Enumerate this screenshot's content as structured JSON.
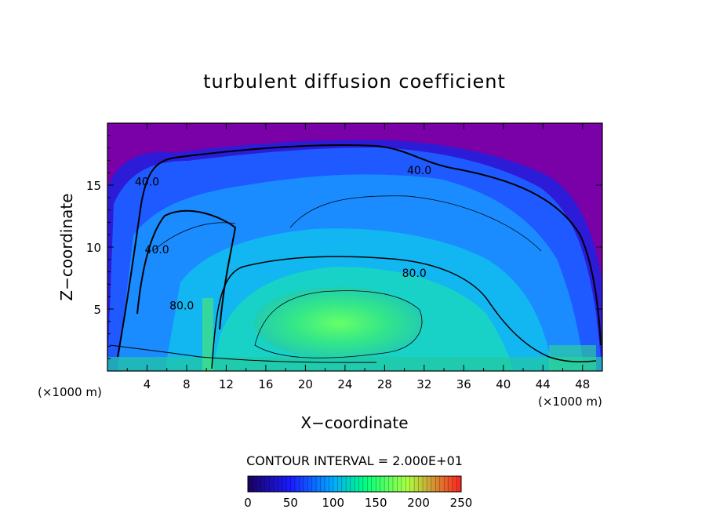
{
  "chart_data": {
    "type": "heatmap",
    "title": "turbulent diffusion coefficient",
    "xlabel": "X−coordinate",
    "ylabel": "Z−coordinate",
    "x_unit_left": "(×1000 m)",
    "x_unit_right": "(×1000 m)",
    "xlim": [
      0,
      50
    ],
    "ylim": [
      0,
      20
    ],
    "x_ticks": [
      4,
      8,
      12,
      16,
      20,
      24,
      28,
      32,
      36,
      40,
      44,
      48
    ],
    "y_ticks": [
      5,
      10,
      15
    ],
    "contour_interval_text": "CONTOUR INTERVAL = 2.000E+01",
    "contour_labels": [
      {
        "text": "40.0",
        "x": 31.5,
        "y": 16.2
      },
      {
        "text": "40.0",
        "x": 4.0,
        "y": 15.3
      },
      {
        "text": "40.0",
        "x": 5.0,
        "y": 9.8
      },
      {
        "text": "80.0",
        "x": 31.0,
        "y": 7.9
      },
      {
        "text": "80.0",
        "x": 7.5,
        "y": 5.3
      }
    ],
    "colorbar": {
      "min": 0,
      "max": 250,
      "tick_labels": [
        "0",
        "50",
        "100",
        "150",
        "200",
        "250"
      ],
      "colors": [
        "#1a0060",
        "#1a1aff",
        "#00aaff",
        "#00ff80",
        "#aaff40",
        "#ff2020"
      ]
    },
    "grid": false
  }
}
